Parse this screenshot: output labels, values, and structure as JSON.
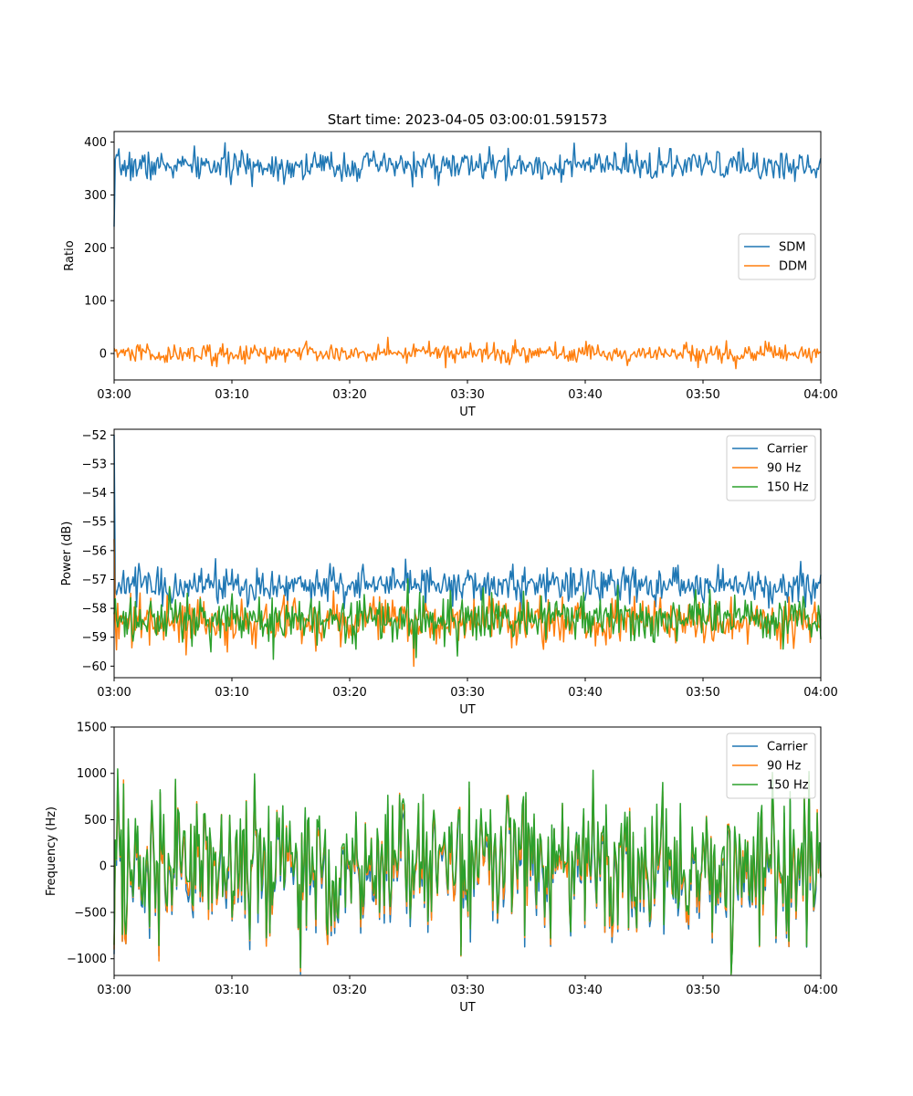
{
  "chart_data": [
    {
      "type": "line",
      "title": "Start time: 2023-04-05 03:00:01.591573",
      "xlabel": "UT",
      "ylabel": "Ratio",
      "xlim": [
        "03:00",
        "04:00"
      ],
      "ylim": [
        -50,
        420
      ],
      "xticks": [
        "03:00",
        "03:10",
        "03:20",
        "03:30",
        "03:40",
        "03:50",
        "04:00"
      ],
      "yticks": [
        0,
        100,
        200,
        300,
        400
      ],
      "legend": "center-right",
      "series": [
        {
          "name": "SDM",
          "color": "#1f77b4",
          "mean": 355,
          "noise": 14,
          "start": 240
        },
        {
          "name": "DDM",
          "color": "#ff7f0e",
          "mean": 0,
          "noise": 9,
          "start": 10
        }
      ]
    },
    {
      "type": "line",
      "title": "",
      "xlabel": "UT",
      "ylabel": "Power (dB)",
      "xlim": [
        "03:00",
        "04:00"
      ],
      "ylim": [
        -60.4,
        -51.8
      ],
      "xticks": [
        "03:00",
        "03:10",
        "03:20",
        "03:30",
        "03:40",
        "03:50",
        "04:00"
      ],
      "yticks": [
        -60,
        -59,
        -58,
        -57,
        -56,
        -55,
        -54,
        -53,
        -52
      ],
      "legend": "top-right",
      "series": [
        {
          "name": "Carrier",
          "color": "#1f77b4",
          "mean": -57.2,
          "noise": 0.32,
          "start": -52.0
        },
        {
          "name": "90 Hz",
          "color": "#ff7f0e",
          "mean": -58.45,
          "noise": 0.38,
          "start": -55.6
        },
        {
          "name": "150 Hz",
          "color": "#2ca02c",
          "mean": -58.35,
          "noise": 0.4,
          "start": -58.2
        }
      ]
    },
    {
      "type": "line",
      "title": "",
      "xlabel": "UT",
      "ylabel": "Frequency (Hz)",
      "xlim": [
        "03:00",
        "04:00"
      ],
      "ylim": [
        -1180,
        1500
      ],
      "xticks": [
        "03:00",
        "03:10",
        "03:20",
        "03:30",
        "03:40",
        "03:50",
        "04:00"
      ],
      "yticks": [
        -1000,
        -500,
        0,
        500,
        1000,
        1500
      ],
      "legend": "top-right",
      "series": [
        {
          "name": "Carrier",
          "color": "#1f77b4",
          "mean": -30,
          "noise": 420,
          "start": -950
        },
        {
          "name": "90 Hz",
          "color": "#ff7f0e",
          "mean": 10,
          "noise": 420,
          "start": -900
        },
        {
          "name": "150 Hz",
          "color": "#2ca02c",
          "mean": 60,
          "noise": 420,
          "start": -850
        }
      ]
    }
  ]
}
